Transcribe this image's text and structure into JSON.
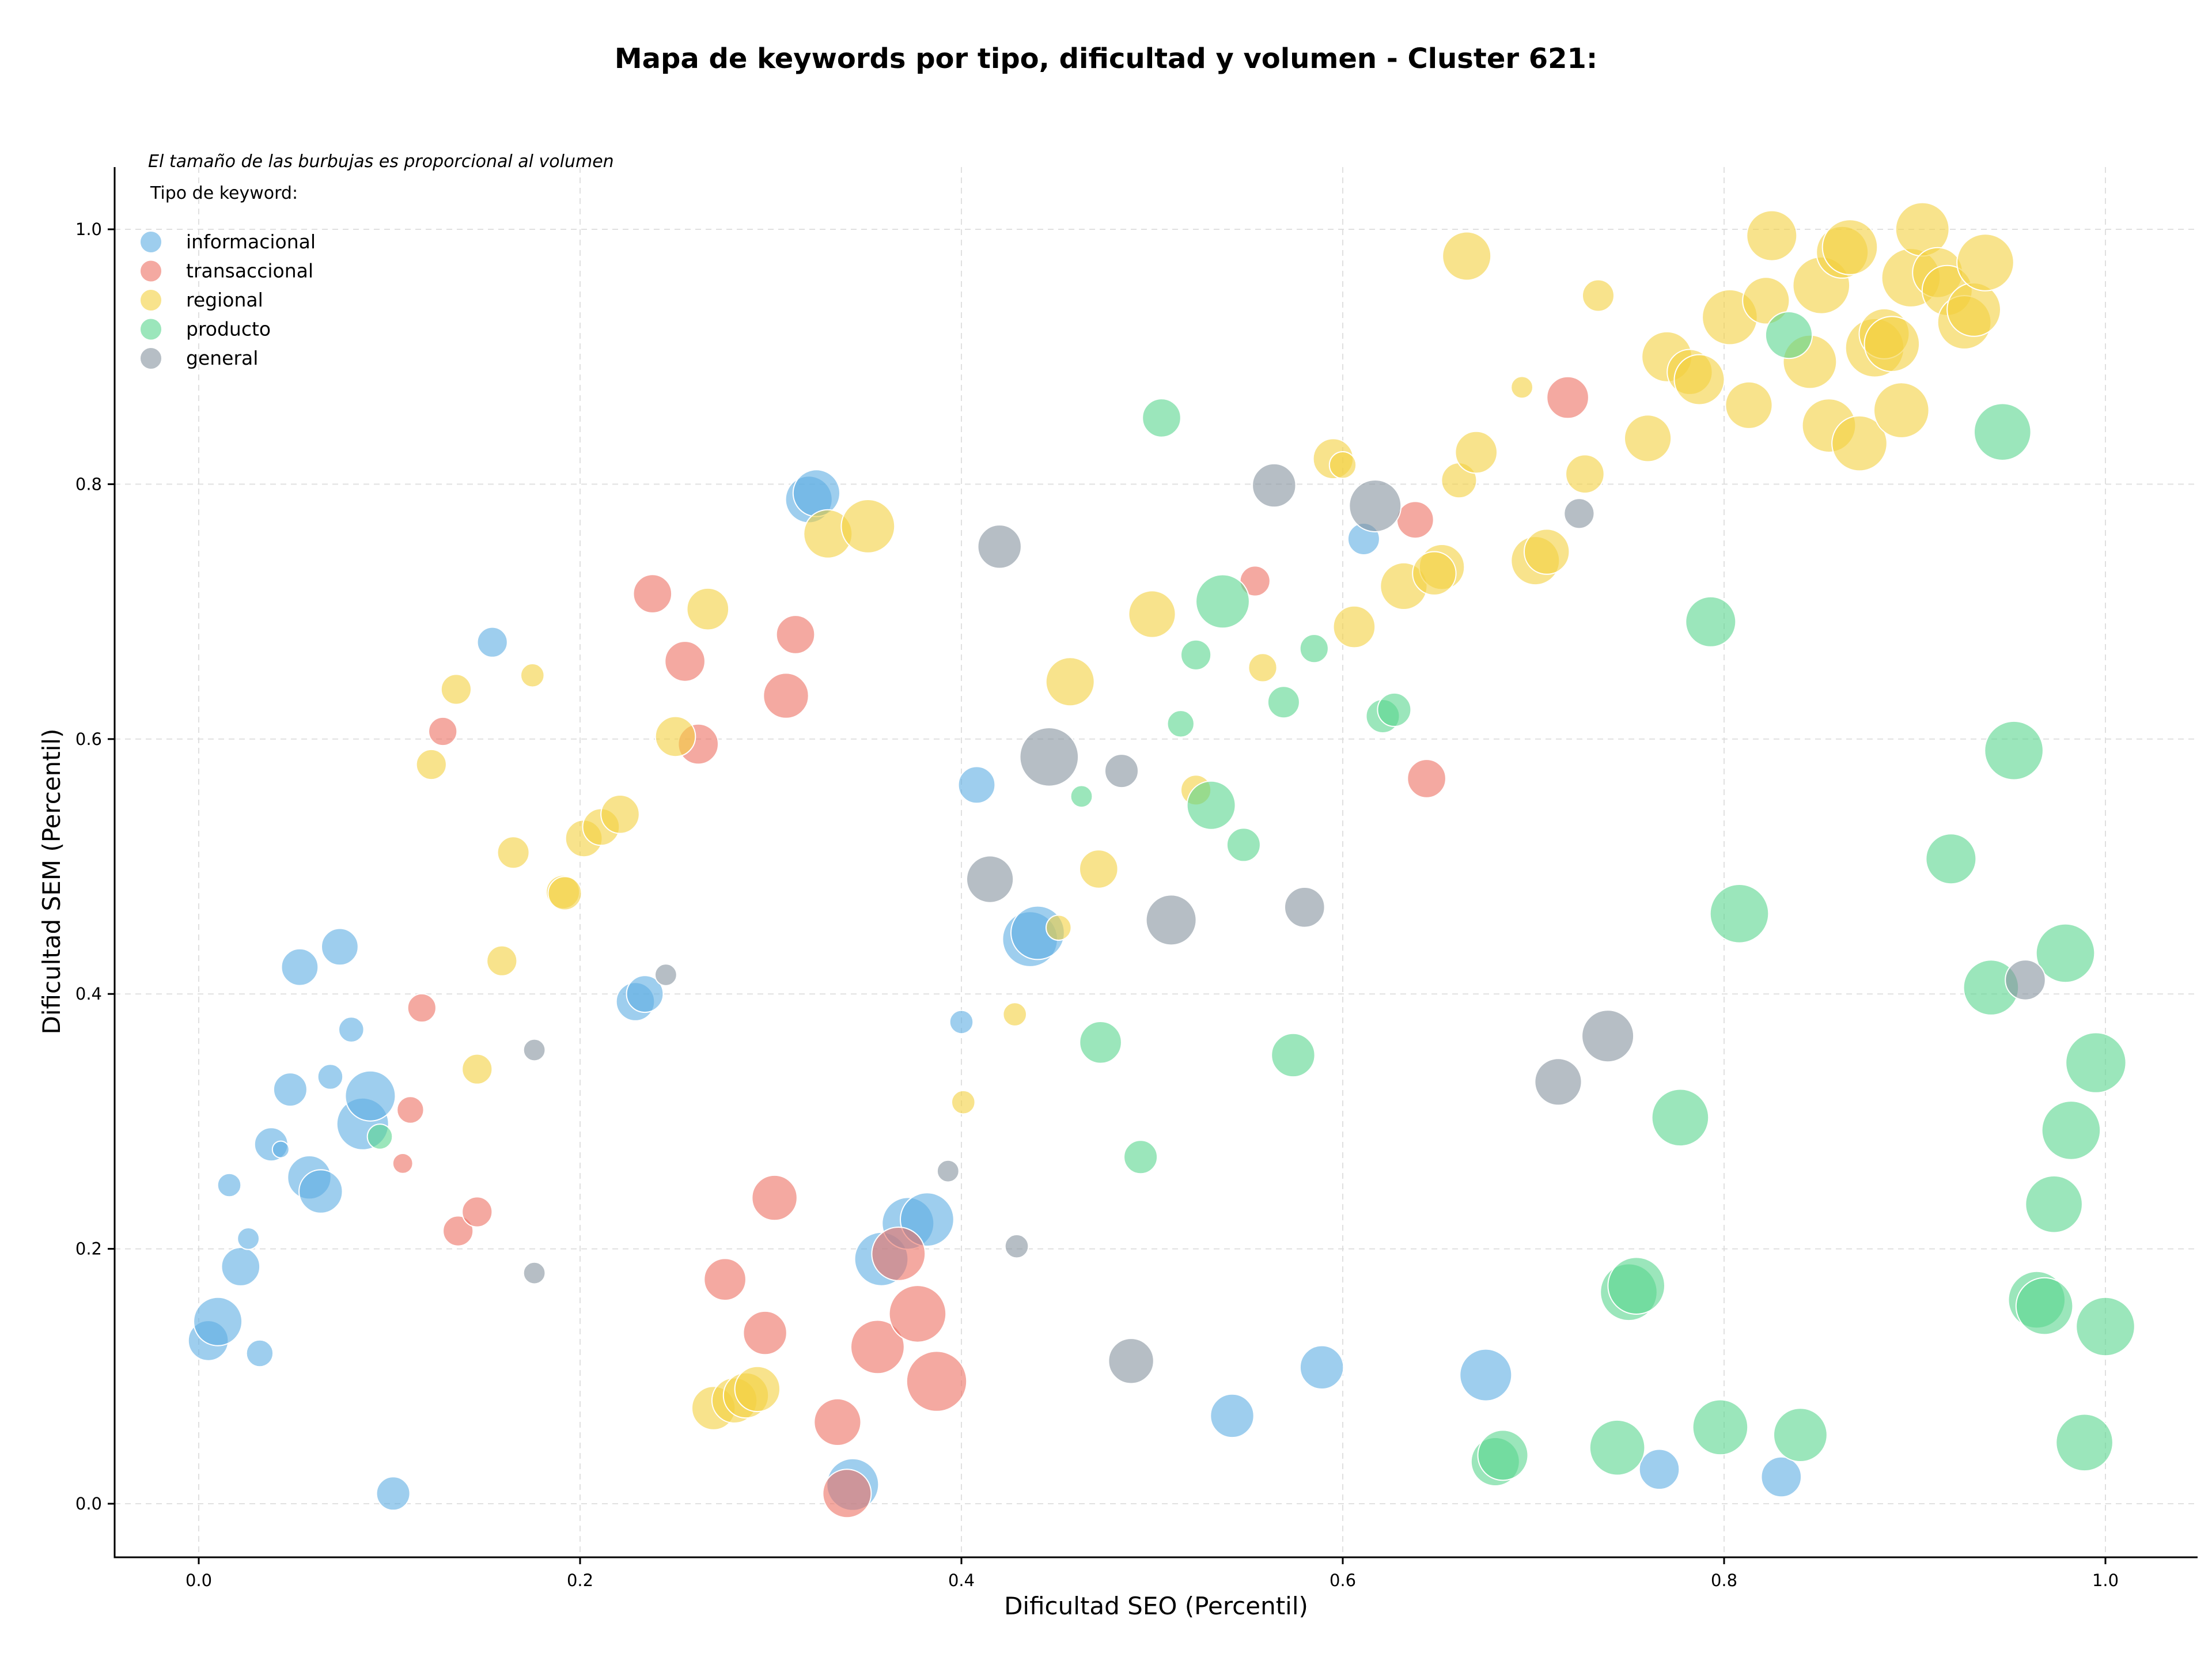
{
  "chart_data": {
    "type": "scatter",
    "title": "Mapa de keywords por tipo, dificultad y volumen - Cluster 621:",
    "xlabel": "Dificultad SEO (Percentil)",
    "ylabel": "Dificultad SEM (Percentil)",
    "xlim": [
      -0.044,
      1.048
    ],
    "ylim": [
      -0.042,
      1.05
    ],
    "xticks": [
      "0.0",
      "0.2",
      "0.4",
      "0.6",
      "0.8",
      "1.0"
    ],
    "yticks": [
      "0.0",
      "0.2",
      "0.4",
      "0.6",
      "0.8",
      "1.0"
    ],
    "grid": true,
    "note": "El tamaño de las burbujas es proporcional al volumen",
    "legend": {
      "title": "Tipo de keyword:",
      "position": "upper-left"
    },
    "series": [
      {
        "name": "informacional",
        "color": "#5dade2",
        "points": [
          [
            0.005,
            0.128,
            2.4
          ],
          [
            0.01,
            0.143,
            2.9
          ],
          [
            0.022,
            0.186,
            2.3
          ],
          [
            0.032,
            0.118,
            1.6
          ],
          [
            0.016,
            0.25,
            1.4
          ],
          [
            0.026,
            0.208,
            1.3
          ],
          [
            0.038,
            0.282,
            2.0
          ],
          [
            0.043,
            0.278,
            1.0
          ],
          [
            0.048,
            0.325,
            2.0
          ],
          [
            0.058,
            0.256,
            2.6
          ],
          [
            0.064,
            0.245,
            2.6
          ],
          [
            0.069,
            0.335,
            1.5
          ],
          [
            0.08,
            0.372,
            1.5
          ],
          [
            0.086,
            0.298,
            3.1
          ],
          [
            0.09,
            0.32,
            3.0
          ],
          [
            0.053,
            0.421,
            2.2
          ],
          [
            0.074,
            0.437,
            2.2
          ],
          [
            0.102,
            0.008,
            2.0
          ],
          [
            0.154,
            0.676,
            1.8
          ],
          [
            0.229,
            0.394,
            2.3
          ],
          [
            0.234,
            0.4,
            2.2
          ],
          [
            0.32,
            0.788,
            2.8
          ],
          [
            0.324,
            0.793,
            2.8
          ],
          [
            0.343,
            0.015,
            3.1
          ],
          [
            0.358,
            0.192,
            3.2
          ],
          [
            0.372,
            0.22,
            3.1
          ],
          [
            0.382,
            0.223,
            3.2
          ],
          [
            0.4,
            0.378,
            1.4
          ],
          [
            0.408,
            0.564,
            2.2
          ],
          [
            0.436,
            0.443,
            3.3
          ],
          [
            0.44,
            0.448,
            3.2
          ],
          [
            0.611,
            0.757,
            1.9
          ],
          [
            0.589,
            0.107,
            2.6
          ],
          [
            0.542,
            0.069,
            2.6
          ],
          [
            0.675,
            0.101,
            3.1
          ],
          [
            0.766,
            0.027,
            2.4
          ],
          [
            0.83,
            0.021,
            2.4
          ]
        ]
      },
      {
        "name": "transaccional",
        "color": "#ec7063",
        "points": [
          [
            0.107,
            0.267,
            1.2
          ],
          [
            0.111,
            0.309,
            1.6
          ],
          [
            0.117,
            0.389,
            1.7
          ],
          [
            0.128,
            0.606,
            1.7
          ],
          [
            0.136,
            0.214,
            1.8
          ],
          [
            0.146,
            0.229,
            1.8
          ],
          [
            0.238,
            0.714,
            2.3
          ],
          [
            0.255,
            0.661,
            2.4
          ],
          [
            0.262,
            0.596,
            2.4
          ],
          [
            0.276,
            0.176,
            2.5
          ],
          [
            0.297,
            0.134,
            2.6
          ],
          [
            0.302,
            0.24,
            2.7
          ],
          [
            0.308,
            0.634,
            2.7
          ],
          [
            0.313,
            0.682,
            2.3
          ],
          [
            0.335,
            0.064,
            2.8
          ],
          [
            0.34,
            0.008,
            2.9
          ],
          [
            0.356,
            0.123,
            3.2
          ],
          [
            0.367,
            0.196,
            3.2
          ],
          [
            0.377,
            0.149,
            3.4
          ],
          [
            0.387,
            0.096,
            3.6
          ],
          [
            0.554,
            0.724,
            1.8
          ],
          [
            0.638,
            0.772,
            2.2
          ],
          [
            0.644,
            0.569,
            2.3
          ],
          [
            0.718,
            0.868,
            2.5
          ]
        ]
      },
      {
        "name": "regional",
        "color": "#f4d03f",
        "points": [
          [
            0.122,
            0.58,
            1.8
          ],
          [
            0.135,
            0.639,
            1.8
          ],
          [
            0.146,
            0.341,
            1.8
          ],
          [
            0.159,
            0.426,
            1.8
          ],
          [
            0.165,
            0.511,
            1.9
          ],
          [
            0.175,
            0.65,
            1.4
          ],
          [
            0.191,
            0.48,
            2.0
          ],
          [
            0.192,
            0.479,
            2.0
          ],
          [
            0.202,
            0.522,
            2.2
          ],
          [
            0.211,
            0.531,
            2.2
          ],
          [
            0.221,
            0.541,
            2.3
          ],
          [
            0.25,
            0.602,
            2.4
          ],
          [
            0.267,
            0.702,
            2.5
          ],
          [
            0.27,
            0.075,
            2.6
          ],
          [
            0.281,
            0.081,
            2.7
          ],
          [
            0.287,
            0.085,
            2.7
          ],
          [
            0.293,
            0.09,
            2.7
          ],
          [
            0.33,
            0.761,
            2.9
          ],
          [
            0.351,
            0.767,
            3.2
          ],
          [
            0.401,
            0.315,
            1.4
          ],
          [
            0.428,
            0.384,
            1.4
          ],
          [
            0.451,
            0.452,
            1.5
          ],
          [
            0.457,
            0.645,
            2.9
          ],
          [
            0.472,
            0.498,
            2.3
          ],
          [
            0.5,
            0.698,
            2.8
          ],
          [
            0.523,
            0.56,
            1.8
          ],
          [
            0.558,
            0.656,
            1.7
          ],
          [
            0.595,
            0.82,
            2.4
          ],
          [
            0.6,
            0.815,
            1.6
          ],
          [
            0.606,
            0.688,
            2.5
          ],
          [
            0.632,
            0.72,
            2.8
          ],
          [
            0.652,
            0.735,
            2.7
          ],
          [
            0.648,
            0.73,
            2.6
          ],
          [
            0.661,
            0.803,
            2.1
          ],
          [
            0.665,
            0.979,
            2.9
          ],
          [
            0.67,
            0.825,
            2.5
          ],
          [
            0.694,
            0.876,
            1.3
          ],
          [
            0.701,
            0.74,
            2.9
          ],
          [
            0.707,
            0.747,
            2.7
          ],
          [
            0.727,
            0.808,
            2.3
          ],
          [
            0.734,
            0.948,
            1.9
          ],
          [
            0.76,
            0.836,
            2.8
          ],
          [
            0.77,
            0.9,
            3.0
          ],
          [
            0.782,
            0.888,
            2.7
          ],
          [
            0.787,
            0.882,
            3.0
          ],
          [
            0.803,
            0.931,
            3.3
          ],
          [
            0.813,
            0.862,
            2.8
          ],
          [
            0.822,
            0.944,
            2.8
          ],
          [
            0.825,
            0.995,
            3.0
          ],
          [
            0.845,
            0.896,
            3.2
          ],
          [
            0.851,
            0.956,
            3.4
          ],
          [
            0.855,
            0.846,
            3.2
          ],
          [
            0.862,
            0.982,
            3.1
          ],
          [
            0.866,
            0.986,
            3.3
          ],
          [
            0.871,
            0.832,
            3.3
          ],
          [
            0.879,
            0.907,
            3.5
          ],
          [
            0.884,
            0.918,
            3.0
          ],
          [
            0.888,
            0.91,
            3.3
          ],
          [
            0.893,
            0.858,
            3.3
          ],
          [
            0.898,
            0.962,
            3.5
          ],
          [
            0.904,
            1.0,
            3.2
          ],
          [
            0.912,
            0.966,
            3.0
          ],
          [
            0.917,
            0.952,
            3.0
          ],
          [
            0.926,
            0.927,
            3.2
          ],
          [
            0.931,
            0.937,
            3.2
          ],
          [
            0.937,
            0.974,
            3.4
          ]
        ]
      },
      {
        "name": "producto",
        "color": "#58d68d",
        "points": [
          [
            0.095,
            0.288,
            1.5
          ],
          [
            0.463,
            0.555,
            1.3
          ],
          [
            0.473,
            0.362,
            2.5
          ],
          [
            0.494,
            0.272,
            2.0
          ],
          [
            0.505,
            0.852,
            2.3
          ],
          [
            0.515,
            0.612,
            1.6
          ],
          [
            0.523,
            0.666,
            1.8
          ],
          [
            0.531,
            0.548,
            2.9
          ],
          [
            0.537,
            0.708,
            3.2
          ],
          [
            0.548,
            0.517,
            2.0
          ],
          [
            0.569,
            0.629,
            1.9
          ],
          [
            0.574,
            0.352,
            2.6
          ],
          [
            0.585,
            0.671,
            1.7
          ],
          [
            0.621,
            0.618,
            2.0
          ],
          [
            0.627,
            0.623,
            2.0
          ],
          [
            0.68,
            0.033,
            2.9
          ],
          [
            0.684,
            0.038,
            3.0
          ],
          [
            0.744,
            0.044,
            3.3
          ],
          [
            0.75,
            0.166,
            3.4
          ],
          [
            0.754,
            0.171,
            3.4
          ],
          [
            0.777,
            0.303,
            3.4
          ],
          [
            0.793,
            0.692,
            3.0
          ],
          [
            0.798,
            0.06,
            3.3
          ],
          [
            0.808,
            0.463,
            3.5
          ],
          [
            0.834,
            0.917,
            2.8
          ],
          [
            0.84,
            0.054,
            3.2
          ],
          [
            0.919,
            0.506,
            3.0
          ],
          [
            0.94,
            0.405,
            3.3
          ],
          [
            0.946,
            0.841,
            3.4
          ],
          [
            0.952,
            0.591,
            3.5
          ],
          [
            0.964,
            0.16,
            3.4
          ],
          [
            0.968,
            0.155,
            3.4
          ],
          [
            0.973,
            0.235,
            3.4
          ],
          [
            0.979,
            0.432,
            3.5
          ],
          [
            0.982,
            0.293,
            3.5
          ],
          [
            0.989,
            0.048,
            3.4
          ],
          [
            0.995,
            0.346,
            3.6
          ],
          [
            1.0,
            0.139,
            3.5
          ]
        ]
      },
      {
        "name": "general",
        "color": "#85929e",
        "points": [
          [
            0.176,
            0.356,
            1.3
          ],
          [
            0.176,
            0.181,
            1.3
          ],
          [
            0.245,
            0.415,
            1.3
          ],
          [
            0.393,
            0.261,
            1.3
          ],
          [
            0.415,
            0.49,
            2.8
          ],
          [
            0.42,
            0.751,
            2.6
          ],
          [
            0.429,
            0.202,
            1.4
          ],
          [
            0.446,
            0.586,
            3.5
          ],
          [
            0.484,
            0.575,
            2.0
          ],
          [
            0.489,
            0.112,
            2.7
          ],
          [
            0.51,
            0.458,
            3.0
          ],
          [
            0.564,
            0.799,
            2.6
          ],
          [
            0.58,
            0.468,
            2.4
          ],
          [
            0.617,
            0.783,
            3.1
          ],
          [
            0.713,
            0.331,
            2.8
          ],
          [
            0.724,
            0.777,
            1.8
          ],
          [
            0.739,
            0.367,
            3.1
          ],
          [
            0.958,
            0.411,
            2.4
          ]
        ]
      }
    ]
  }
}
